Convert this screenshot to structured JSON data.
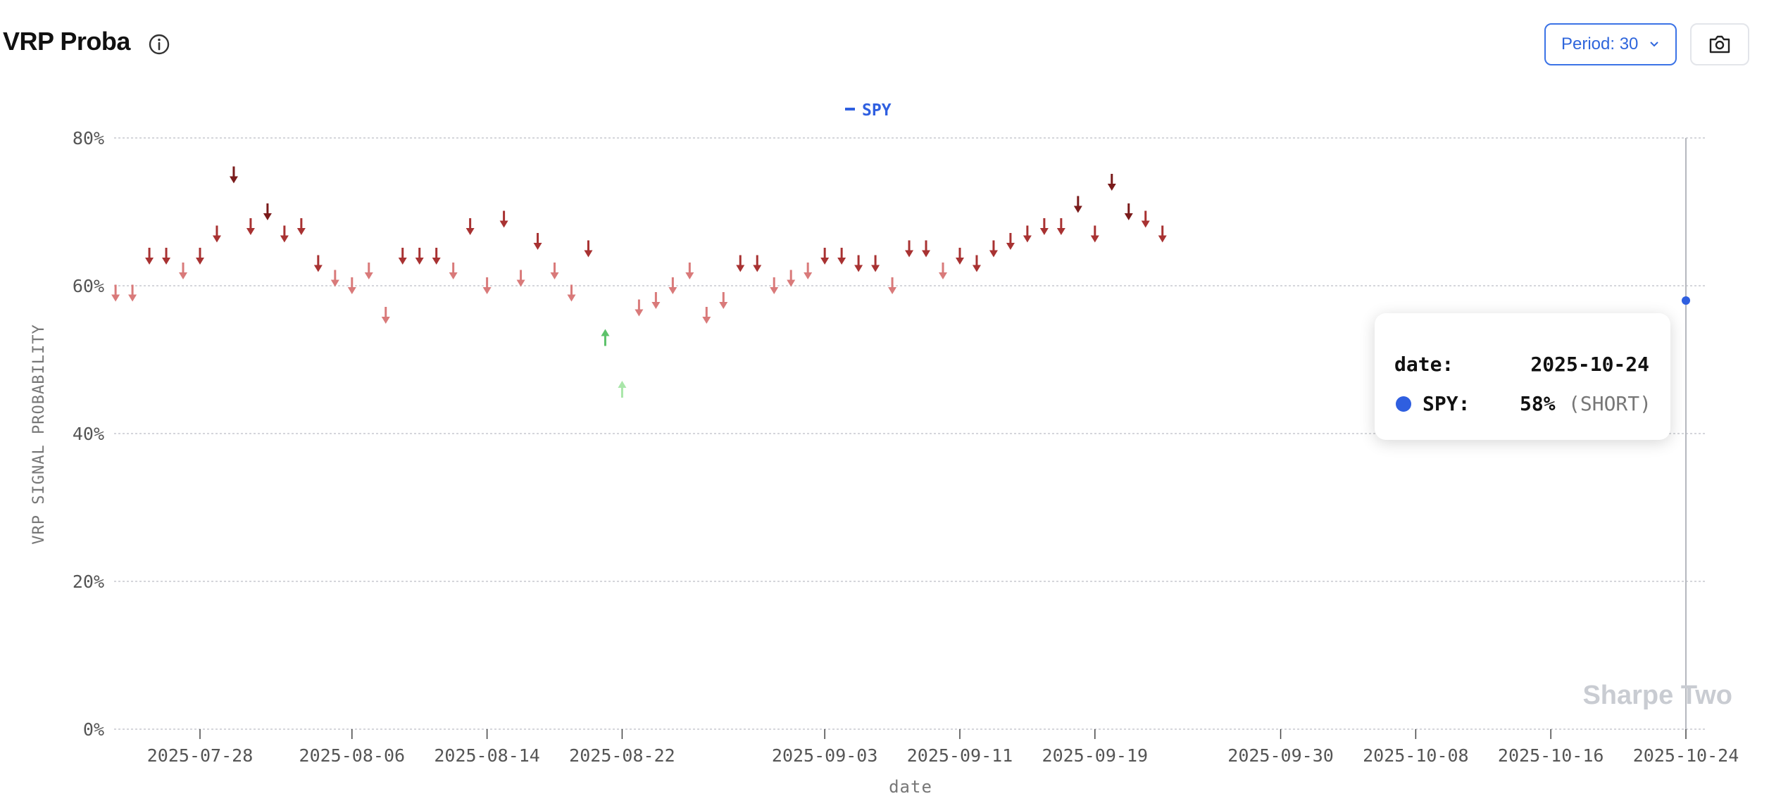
{
  "header": {
    "title": "VRP Proba",
    "info_icon": "info-circle-icon",
    "period_label": "Period: 30",
    "period_icon": "chevron-down-icon",
    "camera_icon": "camera-icon"
  },
  "colors": {
    "series": "#2f5fe0",
    "short_dark": "#7a1b1b",
    "short_mid": "#a83232",
    "short_light": "#d97a7a",
    "long_mid": "#5cc26a",
    "long_light": "#a9e6a9",
    "grid": "#c7c9cf",
    "crosshair": "#b5b8be"
  },
  "chart_data": {
    "type": "scatter",
    "title": "",
    "xlabel": "date",
    "ylabel": "VRP SIGNAL PROBABILITY",
    "ylim": [
      0,
      80
    ],
    "y_ticks": [
      "0%",
      "20%",
      "40%",
      "60%",
      "80%"
    ],
    "y_tick_values": [
      0,
      20,
      40,
      60,
      80
    ],
    "x_ticks": [
      "2025-07-28",
      "2025-08-06",
      "2025-08-14",
      "2025-08-22",
      "2025-09-03",
      "2025-09-11",
      "2025-09-19",
      "2025-09-30",
      "2025-10-08",
      "2025-10-16",
      "2025-10-24"
    ],
    "legend": {
      "position": "top-center",
      "entries": [
        "SPY"
      ]
    },
    "grid": true,
    "series": [
      {
        "name": "SPY",
        "points": [
          {
            "x": "2025-07-23",
            "y": 59,
            "signal": "SHORT"
          },
          {
            "x": "2025-07-24",
            "y": 59,
            "signal": "SHORT"
          },
          {
            "x": "2025-07-25",
            "y": 64,
            "signal": "SHORT"
          },
          {
            "x": "2025-07-26",
            "y": 64,
            "signal": "SHORT"
          },
          {
            "x": "2025-07-27",
            "y": 62,
            "signal": "SHORT"
          },
          {
            "x": "2025-07-28",
            "y": 64,
            "signal": "SHORT"
          },
          {
            "x": "2025-07-29",
            "y": 67,
            "signal": "SHORT"
          },
          {
            "x": "2025-07-30",
            "y": 75,
            "signal": "SHORT"
          },
          {
            "x": "2025-07-31",
            "y": 68,
            "signal": "SHORT"
          },
          {
            "x": "2025-08-01",
            "y": 70,
            "signal": "SHORT"
          },
          {
            "x": "2025-08-02",
            "y": 67,
            "signal": "SHORT"
          },
          {
            "x": "2025-08-03",
            "y": 68,
            "signal": "SHORT"
          },
          {
            "x": "2025-08-04",
            "y": 63,
            "signal": "SHORT"
          },
          {
            "x": "2025-08-05",
            "y": 61,
            "signal": "SHORT"
          },
          {
            "x": "2025-08-06",
            "y": 60,
            "signal": "SHORT"
          },
          {
            "x": "2025-08-07",
            "y": 62,
            "signal": "SHORT"
          },
          {
            "x": "2025-08-08",
            "y": 56,
            "signal": "SHORT"
          },
          {
            "x": "2025-08-09",
            "y": 64,
            "signal": "SHORT"
          },
          {
            "x": "2025-08-10",
            "y": 64,
            "signal": "SHORT"
          },
          {
            "x": "2025-08-11",
            "y": 64,
            "signal": "SHORT"
          },
          {
            "x": "2025-08-12",
            "y": 62,
            "signal": "SHORT"
          },
          {
            "x": "2025-08-13",
            "y": 68,
            "signal": "SHORT"
          },
          {
            "x": "2025-08-14",
            "y": 60,
            "signal": "SHORT"
          },
          {
            "x": "2025-08-15",
            "y": 69,
            "signal": "SHORT"
          },
          {
            "x": "2025-08-16",
            "y": 61,
            "signal": "SHORT"
          },
          {
            "x": "2025-08-17",
            "y": 66,
            "signal": "SHORT"
          },
          {
            "x": "2025-08-18",
            "y": 62,
            "signal": "SHORT"
          },
          {
            "x": "2025-08-19",
            "y": 59,
            "signal": "SHORT"
          },
          {
            "x": "2025-08-20",
            "y": 65,
            "signal": "SHORT"
          },
          {
            "x": "2025-08-21",
            "y": 53,
            "signal": "LONG"
          },
          {
            "x": "2025-08-22",
            "y": 46,
            "signal": "LONG"
          },
          {
            "x": "2025-08-23",
            "y": 57,
            "signal": "SHORT"
          },
          {
            "x": "2025-08-24",
            "y": 58,
            "signal": "SHORT"
          },
          {
            "x": "2025-08-25",
            "y": 60,
            "signal": "SHORT"
          },
          {
            "x": "2025-08-26",
            "y": 62,
            "signal": "SHORT"
          },
          {
            "x": "2025-08-27",
            "y": 56,
            "signal": "SHORT"
          },
          {
            "x": "2025-08-28",
            "y": 58,
            "signal": "SHORT"
          },
          {
            "x": "2025-08-29",
            "y": 63,
            "signal": "SHORT"
          },
          {
            "x": "2025-08-30",
            "y": 63,
            "signal": "SHORT"
          },
          {
            "x": "2025-08-31",
            "y": 60,
            "signal": "SHORT"
          },
          {
            "x": "2025-09-01",
            "y": 61,
            "signal": "SHORT"
          },
          {
            "x": "2025-09-02",
            "y": 62,
            "signal": "SHORT"
          },
          {
            "x": "2025-09-03",
            "y": 64,
            "signal": "SHORT"
          },
          {
            "x": "2025-09-04",
            "y": 64,
            "signal": "SHORT"
          },
          {
            "x": "2025-09-05",
            "y": 63,
            "signal": "SHORT"
          },
          {
            "x": "2025-09-06",
            "y": 63,
            "signal": "SHORT"
          },
          {
            "x": "2025-09-07",
            "y": 60,
            "signal": "SHORT"
          },
          {
            "x": "2025-09-08",
            "y": 65,
            "signal": "SHORT"
          },
          {
            "x": "2025-09-09",
            "y": 65,
            "signal": "SHORT"
          },
          {
            "x": "2025-09-10",
            "y": 62,
            "signal": "SHORT"
          },
          {
            "x": "2025-09-11",
            "y": 64,
            "signal": "SHORT"
          },
          {
            "x": "2025-09-12",
            "y": 63,
            "signal": "SHORT"
          },
          {
            "x": "2025-09-13",
            "y": 65,
            "signal": "SHORT"
          },
          {
            "x": "2025-09-14",
            "y": 66,
            "signal": "SHORT"
          },
          {
            "x": "2025-09-15",
            "y": 67,
            "signal": "SHORT"
          },
          {
            "x": "2025-09-16",
            "y": 68,
            "signal": "SHORT"
          },
          {
            "x": "2025-09-17",
            "y": 68,
            "signal": "SHORT"
          },
          {
            "x": "2025-09-18",
            "y": 71,
            "signal": "SHORT"
          },
          {
            "x": "2025-09-19",
            "y": 67,
            "signal": "SHORT"
          },
          {
            "x": "2025-09-20",
            "y": 74,
            "signal": "SHORT"
          },
          {
            "x": "2025-09-21",
            "y": 70,
            "signal": "SHORT"
          },
          {
            "x": "2025-09-22",
            "y": 69,
            "signal": "SHORT"
          },
          {
            "x": "2025-09-23",
            "y": 67,
            "signal": "SHORT"
          },
          {
            "x": "2025-10-24",
            "y": 58,
            "signal": "SHORT"
          }
        ]
      }
    ]
  },
  "watermark": "Sharpe Two",
  "tooltip": {
    "date_label": "date:",
    "date_value": "2025-10-24",
    "series_label": "SPY:",
    "value": "58%",
    "signal": "(SHORT)"
  }
}
